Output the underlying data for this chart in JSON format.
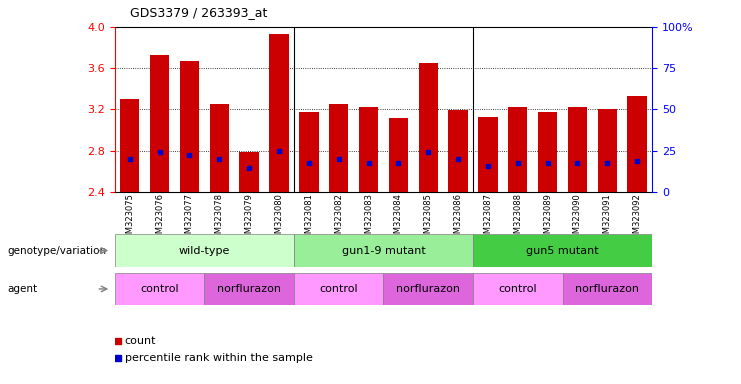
{
  "title": "GDS3379 / 263393_at",
  "samples": [
    "GSM323075",
    "GSM323076",
    "GSM323077",
    "GSM323078",
    "GSM323079",
    "GSM323080",
    "GSM323081",
    "GSM323082",
    "GSM323083",
    "GSM323084",
    "GSM323085",
    "GSM323086",
    "GSM323087",
    "GSM323088",
    "GSM323089",
    "GSM323090",
    "GSM323091",
    "GSM323092"
  ],
  "counts": [
    3.3,
    3.73,
    3.67,
    3.25,
    2.79,
    3.93,
    3.18,
    3.25,
    3.22,
    3.12,
    3.65,
    3.19,
    3.13,
    3.22,
    3.18,
    3.22,
    3.2,
    3.33
  ],
  "percentile_values": [
    2.72,
    2.79,
    2.76,
    2.72,
    2.63,
    2.8,
    2.68,
    2.72,
    2.68,
    2.68,
    2.79,
    2.72,
    2.65,
    2.68,
    2.68,
    2.68,
    2.68,
    2.7
  ],
  "ymin": 2.4,
  "ymax": 4.0,
  "left_yticks": [
    2.4,
    2.8,
    3.2,
    3.6,
    4.0
  ],
  "right_ytick_vals": [
    2.4,
    2.8,
    3.2,
    3.6,
    4.0
  ],
  "right_ytick_labels": [
    "0",
    "25",
    "50",
    "75",
    "100%"
  ],
  "bar_color": "#cc0000",
  "dot_color": "#0000cc",
  "genotype_groups": [
    {
      "label": "wild-type",
      "start": 0,
      "end": 6,
      "color": "#ccffcc"
    },
    {
      "label": "gun1-9 mutant",
      "start": 6,
      "end": 12,
      "color": "#99ee99"
    },
    {
      "label": "gun5 mutant",
      "start": 12,
      "end": 18,
      "color": "#44cc44"
    }
  ],
  "agent_groups": [
    {
      "label": "control",
      "start": 0,
      "end": 3,
      "color": "#ff99ff"
    },
    {
      "label": "norflurazon",
      "start": 3,
      "end": 6,
      "color": "#dd66dd"
    },
    {
      "label": "control",
      "start": 6,
      "end": 9,
      "color": "#ff99ff"
    },
    {
      "label": "norflurazon",
      "start": 9,
      "end": 12,
      "color": "#dd66dd"
    },
    {
      "label": "control",
      "start": 12,
      "end": 15,
      "color": "#ff99ff"
    },
    {
      "label": "norflurazon",
      "start": 15,
      "end": 18,
      "color": "#dd66dd"
    }
  ],
  "group_boundaries": [
    6,
    12
  ],
  "legend_count_color": "#cc0000",
  "legend_dot_color": "#0000cc"
}
